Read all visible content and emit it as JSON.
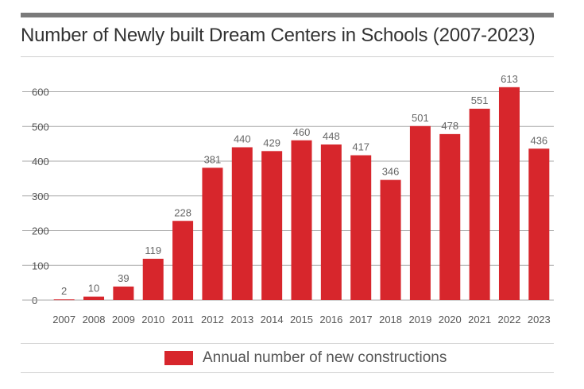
{
  "chart_data": {
    "type": "bar",
    "title": "Number of Newly built Dream Centers in Schools (2007-2023)",
    "categories": [
      "2007",
      "2008",
      "2009",
      "2010",
      "2011",
      "2012",
      "2013",
      "2014",
      "2015",
      "2016",
      "2017",
      "2018",
      "2019",
      "2020",
      "2021",
      "2022",
      "2023"
    ],
    "series": [
      {
        "name": "Annual number of new constructions",
        "values": [
          2,
          10,
          39,
          119,
          228,
          381,
          440,
          429,
          460,
          448,
          417,
          346,
          501,
          478,
          551,
          613,
          436
        ],
        "color": "#d7262c"
      }
    ],
    "xlabel": "",
    "ylabel": "",
    "yticks": [
      0,
      100,
      200,
      300,
      400,
      500,
      600
    ],
    "ylim": [
      0,
      650
    ],
    "grid": true,
    "legend_position": "bottom"
  },
  "colors": {
    "bar": "#d7262c",
    "grid": "#a9a9a9",
    "axis_text": "#555555",
    "label_text": "#666666",
    "title_text": "#333333"
  }
}
